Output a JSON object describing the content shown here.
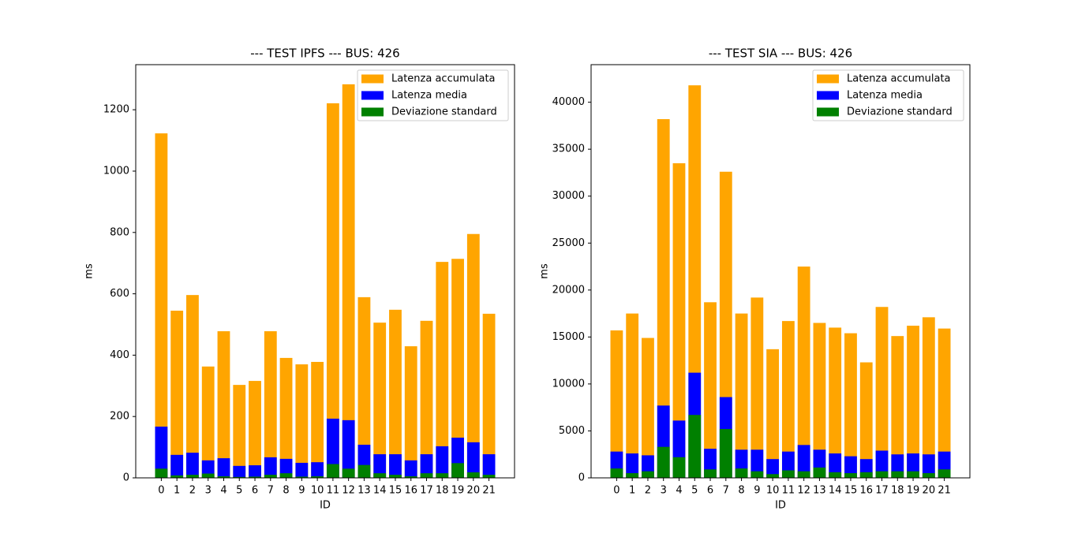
{
  "chart_data": [
    {
      "type": "bar",
      "title": "--- TEST IPFS --- BUS: 426",
      "x_label": "ID",
      "y_label": "ms",
      "categories": [
        "0",
        "1",
        "2",
        "3",
        "4",
        "5",
        "6",
        "7",
        "8",
        "9",
        "10",
        "11",
        "12",
        "13",
        "14",
        "15",
        "16",
        "17",
        "18",
        "19",
        "20",
        "21"
      ],
      "series": [
        {
          "name": "Latenza accumulata",
          "color": "#ffa500",
          "values": [
            1123,
            545,
            596,
            363,
            478,
            303,
            316,
            478,
            391,
            370,
            378,
            1221,
            1283,
            589,
            506,
            548,
            429,
            512,
            704,
            714,
            795,
            535
          ]
        },
        {
          "name": "Latenza media",
          "color": "#0000ff",
          "values": [
            167,
            75,
            82,
            57,
            64,
            39,
            41,
            67,
            62,
            49,
            51,
            193,
            188,
            108,
            77,
            77,
            57,
            77,
            103,
            131,
            116,
            77
          ]
        },
        {
          "name": "Deviazione standard",
          "color": "#008000",
          "values": [
            30,
            8,
            10,
            14,
            5,
            3,
            4,
            10,
            15,
            4,
            5,
            45,
            30,
            42,
            15,
            10,
            5,
            15,
            15,
            48,
            18,
            10
          ]
        }
      ],
      "ylim": [
        0,
        1347
      ],
      "yticks": [
        0,
        200,
        400,
        600,
        800,
        1000,
        1200
      ],
      "legend": "upper right"
    },
    {
      "type": "bar",
      "title": "--- TEST SIA --- BUS: 426",
      "x_label": "ID",
      "y_label": "ms",
      "categories": [
        "0",
        "1",
        "2",
        "3",
        "4",
        "5",
        "6",
        "7",
        "8",
        "9",
        "10",
        "11",
        "12",
        "13",
        "14",
        "15",
        "16",
        "17",
        "18",
        "19",
        "20",
        "21"
      ],
      "series": [
        {
          "name": "Latenza accumulata",
          "color": "#ffa500",
          "values": [
            15700,
            17500,
            14900,
            38200,
            33500,
            41800,
            18700,
            32600,
            17500,
            19200,
            13700,
            16700,
            22500,
            16500,
            16000,
            15400,
            12300,
            18200,
            15100,
            16200,
            17100,
            15900
          ]
        },
        {
          "name": "Latenza media",
          "color": "#0000ff",
          "values": [
            2800,
            2600,
            2400,
            7700,
            6100,
            11200,
            3100,
            8600,
            3000,
            3000,
            2000,
            2800,
            3500,
            3000,
            2600,
            2300,
            2000,
            2900,
            2500,
            2600,
            2500,
            2800
          ]
        },
        {
          "name": "Deviazione standard",
          "color": "#008000",
          "values": [
            1000,
            500,
            700,
            3300,
            2200,
            6700,
            900,
            5200,
            1000,
            700,
            400,
            800,
            700,
            1100,
            600,
            500,
            600,
            700,
            700,
            700,
            500,
            900
          ]
        }
      ],
      "ylim": [
        0,
        44000
      ],
      "yticks": [
        0,
        5000,
        10000,
        15000,
        20000,
        25000,
        30000,
        35000,
        40000
      ],
      "legend": "upper right"
    }
  ]
}
